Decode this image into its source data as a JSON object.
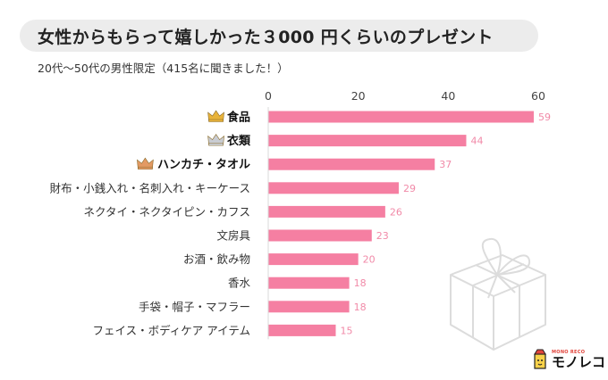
{
  "title": "女性からもらって嬉しかった３000 円くらいのプレゼント",
  "subtitle": "20代～50代の男性限定（415名に聞きました！）",
  "logo": {
    "small_text": "MONO RECO",
    "name": "モノレコ"
  },
  "colors": {
    "bar": "#f57fa2",
    "value_text": "#f18aa8",
    "gold": "#e8b33a",
    "silver": "#c9ccd2",
    "bronze": "#e39a64"
  },
  "chart_data": {
    "type": "bar",
    "orientation": "horizontal",
    "title": "女性からもらって嬉しかった３000 円くらいのプレゼント",
    "xlabel": "",
    "ylabel": "",
    "xlim": [
      0,
      60
    ],
    "ticks": [
      0,
      20,
      40,
      60
    ],
    "categories": [
      "食品",
      "衣類",
      "ハンカチ・タオル",
      "財布・小銭入れ・名刺入れ・キーケース",
      "ネクタイ・ネクタイピン・カフス",
      "文房具",
      "お酒・飲み物",
      "香水",
      "手袋・帽子・マフラー",
      "フェイス・ボディケア アイテム"
    ],
    "values": [
      59,
      44,
      37,
      29,
      26,
      23,
      20,
      18,
      18,
      15
    ],
    "ranks": [
      {
        "category": "食品",
        "crown": "gold",
        "crown_icon": "crown-icon"
      },
      {
        "category": "衣類",
        "crown": "silver",
        "crown_icon": "crown-icon"
      },
      {
        "category": "ハンカチ・タオル",
        "crown": "bronze",
        "crown_icon": "crown-icon"
      }
    ]
  }
}
